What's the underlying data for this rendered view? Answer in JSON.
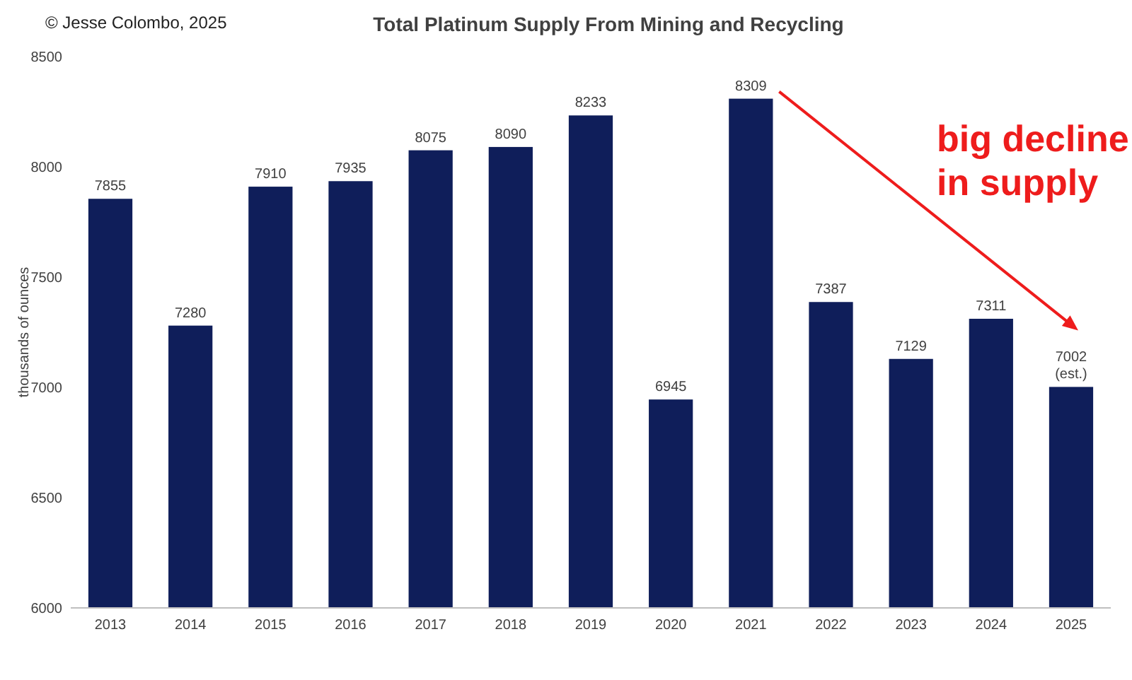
{
  "chart_data": {
    "type": "bar",
    "title": "Total Platinum Supply From Mining and Recycling",
    "ylabel": "thousands of ounces",
    "categories": [
      "2013",
      "2014",
      "2015",
      "2016",
      "2017",
      "2018",
      "2019",
      "2020",
      "2021",
      "2022",
      "2023",
      "2024",
      "2025"
    ],
    "values": [
      7855,
      7280,
      7910,
      7935,
      8075,
      8090,
      8233,
      6945,
      8309,
      7387,
      7129,
      7311,
      7002
    ],
    "value_labels": [
      "7855",
      "7280",
      "7910",
      "7935",
      "8075",
      "8090",
      "8233",
      "6945",
      "8309",
      "7387",
      "7129",
      "7311",
      "7002 (est.)"
    ],
    "color": "#0f1e5a",
    "ylim": [
      6000,
      8500
    ],
    "yticks": [
      6000,
      6500,
      7000,
      7500,
      8000,
      8500
    ],
    "grid": false,
    "annotations": [
      "© Jesse Colombo, 2025",
      "big decline in supply"
    ]
  }
}
